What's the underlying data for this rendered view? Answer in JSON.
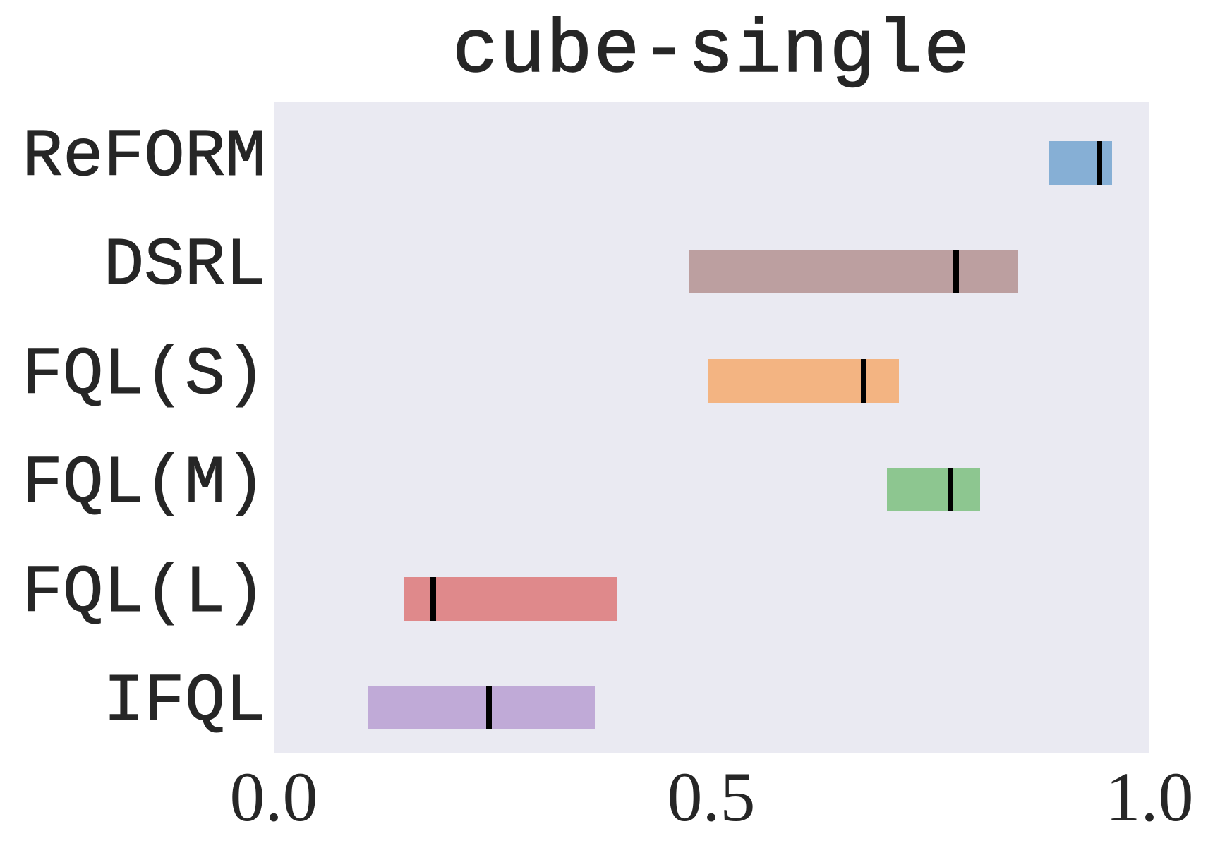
{
  "chart_data": {
    "type": "bar",
    "subtype": "horizontal-range-with-median",
    "title": "cube-single",
    "xlabel": "",
    "ylabel": "",
    "xlim": [
      0.0,
      1.0
    ],
    "xticks": [
      "0.0",
      "0.5",
      "1.0"
    ],
    "grid": false,
    "legend": null,
    "categories": [
      "ReFORM",
      "DSRL",
      "FQL(S)",
      "FQL(M)",
      "FQL(L)",
      "IFQL"
    ],
    "series": [
      {
        "name": "ReFORM",
        "low": 0.885,
        "high": 0.957,
        "median": 0.943,
        "color": "#86afd5"
      },
      {
        "name": "DSRL",
        "low": 0.474,
        "high": 0.85,
        "median": 0.779,
        "color": "#bc9fa0"
      },
      {
        "name": "FQL(S)",
        "low": 0.496,
        "high": 0.714,
        "median": 0.674,
        "color": "#f3b482"
      },
      {
        "name": "FQL(M)",
        "low": 0.7,
        "high": 0.807,
        "median": 0.773,
        "color": "#8dc690"
      },
      {
        "name": "FQL(L)",
        "low": 0.149,
        "high": 0.392,
        "median": 0.182,
        "color": "#df898b"
      },
      {
        "name": "IFQL",
        "low": 0.108,
        "high": 0.367,
        "median": 0.246,
        "color": "#c0aad7"
      }
    ]
  },
  "colors": {
    "plot_background": "#eaeaf2",
    "text": "#262626",
    "median_line": "#000000"
  }
}
